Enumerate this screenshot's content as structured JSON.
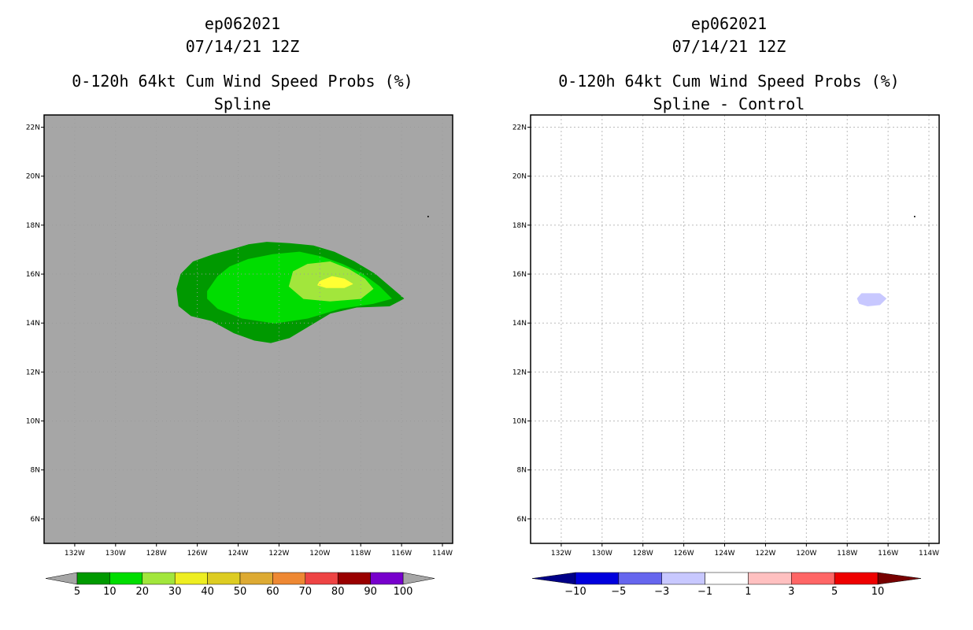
{
  "chart_data": [
    {
      "type": "contour-map",
      "storm_id": "ep062021",
      "datetime": "07/14/21 12Z",
      "title": "0-120h 64kt Cum Wind Speed Probs (%)",
      "subtitle": "Spline",
      "background": "#a6a6a6",
      "grid": false,
      "xlim": [
        -133.5,
        -113.5
      ],
      "ylim": [
        5,
        22.5
      ],
      "x_ticks": [
        -132,
        -130,
        -128,
        -126,
        -124,
        -122,
        -120,
        -118,
        -116,
        -114
      ],
      "x_tick_labels": [
        "132W",
        "130W",
        "128W",
        "126W",
        "124W",
        "122W",
        "120W",
        "118W",
        "116W",
        "114W"
      ],
      "y_ticks": [
        22,
        20,
        18,
        16,
        14,
        12,
        10,
        8,
        6
      ],
      "y_tick_labels": [
        "22N",
        "20N",
        "18N",
        "16N",
        "14N",
        "12N",
        "10N",
        "8N",
        "6N"
      ],
      "contours": [
        {
          "level": "5-10",
          "color": "#009900",
          "lonlat": [
            [
              -126.8,
              16.0
            ],
            [
              -126.2,
              16.5
            ],
            [
              -125.2,
              16.8
            ],
            [
              -124.3,
              17.0
            ],
            [
              -123.5,
              17.2
            ],
            [
              -122.6,
              17.3
            ],
            [
              -121.5,
              17.25
            ],
            [
              -120.3,
              17.15
            ],
            [
              -119.3,
              16.9
            ],
            [
              -118.3,
              16.5
            ],
            [
              -117.3,
              16.0
            ],
            [
              -116.6,
              15.5
            ],
            [
              -115.9,
              15.0
            ],
            [
              -116.6,
              14.7
            ],
            [
              -118.2,
              14.65
            ],
            [
              -119.5,
              14.4
            ],
            [
              -120.5,
              13.9
            ],
            [
              -121.5,
              13.4
            ],
            [
              -122.4,
              13.2
            ],
            [
              -123.2,
              13.3
            ],
            [
              -124.2,
              13.6
            ],
            [
              -125.3,
              14.1
            ],
            [
              -126.3,
              14.3
            ],
            [
              -126.9,
              14.7
            ],
            [
              -127.0,
              15.4
            ]
          ]
        },
        {
          "level": "10-20",
          "color": "#00dd00",
          "lonlat": [
            [
              -125.5,
              15.3
            ],
            [
              -125.0,
              15.9
            ],
            [
              -124.4,
              16.3
            ],
            [
              -123.5,
              16.6
            ],
            [
              -122.3,
              16.8
            ],
            [
              -121.0,
              16.9
            ],
            [
              -119.9,
              16.7
            ],
            [
              -118.9,
              16.4
            ],
            [
              -117.9,
              16.0
            ],
            [
              -117.1,
              15.5
            ],
            [
              -116.5,
              15.0
            ],
            [
              -117.4,
              14.8
            ],
            [
              -119.0,
              14.6
            ],
            [
              -120.6,
              14.2
            ],
            [
              -122.2,
              14.0
            ],
            [
              -123.8,
              14.2
            ],
            [
              -125.0,
              14.6
            ],
            [
              -125.5,
              15.0
            ]
          ]
        },
        {
          "level": "20-30",
          "color": "#a2e63c",
          "lonlat": [
            [
              -121.5,
              15.5
            ],
            [
              -121.3,
              16.1
            ],
            [
              -120.6,
              16.4
            ],
            [
              -119.5,
              16.5
            ],
            [
              -118.6,
              16.2
            ],
            [
              -117.8,
              15.8
            ],
            [
              -117.4,
              15.4
            ],
            [
              -118.0,
              15.0
            ],
            [
              -119.5,
              14.9
            ],
            [
              -120.8,
              15.0
            ]
          ]
        },
        {
          "level": "30-40",
          "color": "#ffff33",
          "lonlat": [
            [
              -120.0,
              15.7
            ],
            [
              -119.4,
              15.9
            ],
            [
              -118.8,
              15.8
            ],
            [
              -118.4,
              15.6
            ],
            [
              -118.8,
              15.45
            ],
            [
              -119.7,
              15.45
            ],
            [
              -120.1,
              15.55
            ]
          ]
        }
      ],
      "colorbar": {
        "labels": [
          "5",
          "10",
          "20",
          "30",
          "40",
          "50",
          "60",
          "70",
          "80",
          "90",
          "100"
        ],
        "colors": [
          "#009900",
          "#00dd00",
          "#a2e63c",
          "#eeee22",
          "#ddcc22",
          "#ddaa33",
          "#ee8833",
          "#ee4444",
          "#990000",
          "#7700cc"
        ],
        "under_color": "#a6a6a6",
        "over_color": "#a6a6a6"
      }
    },
    {
      "type": "contour-map",
      "storm_id": "ep062021",
      "datetime": "07/14/21 12Z",
      "title": "0-120h 64kt Cum Wind Speed Probs (%)",
      "subtitle": "Spline - Control",
      "background": "#ffffff",
      "grid": true,
      "xlim": [
        -133.5,
        -113.5
      ],
      "ylim": [
        5,
        22.5
      ],
      "x_ticks": [
        -132,
        -130,
        -128,
        -126,
        -124,
        -122,
        -120,
        -118,
        -116,
        -114
      ],
      "x_tick_labels": [
        "132W",
        "130W",
        "128W",
        "126W",
        "124W",
        "122W",
        "120W",
        "118W",
        "116W",
        "114W"
      ],
      "y_ticks": [
        22,
        20,
        18,
        16,
        14,
        12,
        10,
        8,
        6
      ],
      "y_tick_labels": [
        "22N",
        "20N",
        "18N",
        "16N",
        "14N",
        "12N",
        "10N",
        "8N",
        "6N"
      ],
      "contours": [
        {
          "level": "-3 to -1",
          "color": "#c8c8ff",
          "lonlat": [
            [
              -117.3,
              15.2
            ],
            [
              -116.4,
              15.2
            ],
            [
              -116.1,
              15.0
            ],
            [
              -116.4,
              14.75
            ],
            [
              -117.0,
              14.7
            ],
            [
              -117.4,
              14.8
            ],
            [
              -117.5,
              15.0
            ]
          ]
        }
      ],
      "colorbar": {
        "labels": [
          "−10",
          "−5",
          "−3",
          "−1",
          "1",
          "3",
          "5",
          "10"
        ],
        "colors": [
          "#0000dd",
          "#6666ee",
          "#c8c8ff",
          "#ffffff",
          "#ffc0c0",
          "#ff6666",
          "#ee0000"
        ],
        "under_color": "#000088",
        "over_color": "#770000"
      }
    }
  ]
}
